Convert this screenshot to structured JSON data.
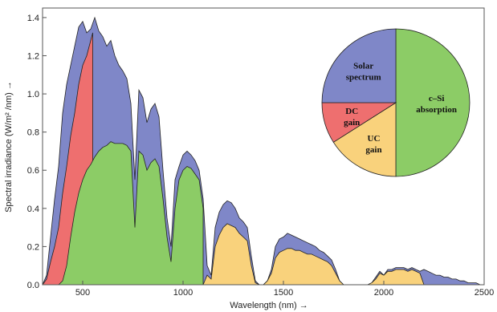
{
  "chart_data": [
    {
      "type": "area",
      "xlabel": "Wavelength (nm) →",
      "ylabel": "Spectral irradiance (W/m² /nm) →",
      "xlim": [
        300,
        2500
      ],
      "ylim": [
        0,
        1.45
      ],
      "xticks": [
        500,
        1000,
        1500,
        2000,
        2500
      ],
      "yticks": [
        0.0,
        0.2,
        0.4,
        0.6,
        0.8,
        1.0,
        1.2,
        1.4
      ],
      "x_tick_labels": [
        "500",
        "1000",
        "1500",
        "2000",
        "2500"
      ],
      "y_tick_labels": [
        "0.0",
        "0.2",
        "0.4",
        "0.6",
        "0.8",
        "1.0",
        "1.2",
        "1.4"
      ],
      "grid": false,
      "series": [
        {
          "color": "#7f87c8",
          "x": [
            300,
            320,
            340,
            360,
            380,
            400,
            420,
            440,
            460,
            480,
            500,
            520,
            540,
            560,
            580,
            600,
            620,
            640,
            660,
            680,
            700,
            720,
            740,
            760,
            780,
            800,
            820,
            840,
            860,
            880,
            900,
            920,
            940,
            960,
            980,
            1000,
            1020,
            1040,
            1060,
            1080,
            1100,
            1120,
            1140,
            1160,
            1180,
            1200,
            1220,
            1240,
            1260,
            1280,
            1300,
            1320,
            1340,
            1360,
            1380,
            1400,
            1420,
            1440,
            1460,
            1480,
            1500,
            1520,
            1540,
            1560,
            1580,
            1600,
            1620,
            1640,
            1660,
            1680,
            1700,
            1720,
            1740,
            1760,
            1780,
            1800,
            1820,
            1840,
            1860,
            1880,
            1900,
            1920,
            1940,
            1960,
            1980,
            2000,
            2020,
            2040,
            2060,
            2080,
            2100,
            2120,
            2140,
            2160,
            2180,
            2200,
            2220,
            2240,
            2260,
            2280,
            2300,
            2320,
            2340,
            2360,
            2380,
            2400,
            2420,
            2440,
            2460,
            2480,
            2500
          ],
          "y": [
            0.0,
            0.05,
            0.25,
            0.45,
            0.62,
            0.9,
            1.05,
            1.15,
            1.25,
            1.35,
            1.38,
            1.32,
            1.34,
            1.4,
            1.33,
            1.3,
            1.25,
            1.28,
            1.2,
            1.15,
            1.12,
            1.08,
            0.95,
            0.55,
            1.02,
            0.98,
            0.85,
            0.92,
            0.95,
            0.88,
            0.6,
            0.35,
            0.2,
            0.55,
            0.62,
            0.68,
            0.7,
            0.68,
            0.65,
            0.6,
            0.45,
            0.1,
            0.05,
            0.3,
            0.38,
            0.42,
            0.44,
            0.43,
            0.4,
            0.35,
            0.33,
            0.3,
            0.15,
            0.02,
            0.0,
            0.0,
            0.02,
            0.08,
            0.2,
            0.24,
            0.25,
            0.27,
            0.26,
            0.25,
            0.24,
            0.23,
            0.22,
            0.21,
            0.2,
            0.18,
            0.17,
            0.15,
            0.13,
            0.08,
            0.02,
            0.0,
            0.0,
            0.0,
            0.0,
            0.0,
            0.0,
            0.0,
            0.01,
            0.04,
            0.07,
            0.05,
            0.08,
            0.08,
            0.09,
            0.09,
            0.09,
            0.08,
            0.09,
            0.08,
            0.07,
            0.08,
            0.07,
            0.06,
            0.05,
            0.05,
            0.04,
            0.04,
            0.03,
            0.03,
            0.02,
            0.02,
            0.01,
            0.01,
            0.01,
            0.0,
            0.0
          ]
        },
        {
          "color": "#ee6f6f",
          "x": [
            300,
            320,
            340,
            360,
            380,
            400,
            420,
            440,
            460,
            480,
            500,
            520,
            540,
            550
          ],
          "y": [
            0.0,
            0.03,
            0.12,
            0.2,
            0.3,
            0.48,
            0.62,
            0.78,
            0.9,
            1.05,
            1.15,
            1.2,
            1.28,
            1.32
          ]
        },
        {
          "color": "#f9d27c",
          "x": [
            1100,
            1120,
            1140,
            1160,
            1180,
            1200,
            1220,
            1240,
            1260,
            1280,
            1300,
            1320,
            1340,
            1360,
            1380,
            1400,
            1420,
            1440,
            1460,
            1480,
            1500,
            1520,
            1540,
            1560,
            1580,
            1600,
            1620,
            1640,
            1660,
            1680,
            1700,
            1720,
            1740,
            1760,
            1780,
            1800,
            1820,
            1840,
            1860,
            1880,
            1900,
            1920,
            1940,
            1960,
            1980,
            2000,
            2020,
            2040,
            2060,
            2080,
            2100,
            2120,
            2140,
            2160,
            2180,
            2200
          ],
          "y": [
            0.0,
            0.05,
            0.03,
            0.2,
            0.26,
            0.3,
            0.32,
            0.31,
            0.3,
            0.27,
            0.25,
            0.23,
            0.1,
            0.01,
            0.0,
            0.0,
            0.02,
            0.06,
            0.14,
            0.17,
            0.18,
            0.19,
            0.19,
            0.18,
            0.18,
            0.17,
            0.16,
            0.16,
            0.15,
            0.14,
            0.13,
            0.12,
            0.1,
            0.06,
            0.02,
            0.0,
            0.0,
            0.0,
            0.0,
            0.0,
            0.0,
            0.0,
            0.01,
            0.03,
            0.06,
            0.05,
            0.07,
            0.07,
            0.08,
            0.08,
            0.08,
            0.07,
            0.08,
            0.07,
            0.06,
            0.0
          ]
        },
        {
          "color": "#8ccc66",
          "x": [
            300,
            320,
            340,
            360,
            380,
            400,
            420,
            440,
            460,
            480,
            500,
            520,
            540,
            560,
            580,
            600,
            620,
            640,
            660,
            680,
            700,
            720,
            740,
            760,
            780,
            800,
            820,
            840,
            860,
            880,
            900,
            920,
            940,
            960,
            980,
            1000,
            1020,
            1040,
            1060,
            1080,
            1100
          ],
          "y": [
            0.0,
            0.0,
            0.0,
            0.0,
            0.0,
            0.02,
            0.1,
            0.25,
            0.38,
            0.48,
            0.55,
            0.6,
            0.63,
            0.67,
            0.7,
            0.72,
            0.73,
            0.75,
            0.74,
            0.74,
            0.74,
            0.73,
            0.7,
            0.3,
            0.7,
            0.68,
            0.6,
            0.64,
            0.66,
            0.62,
            0.45,
            0.25,
            0.12,
            0.4,
            0.55,
            0.6,
            0.62,
            0.61,
            0.58,
            0.55,
            0.4
          ]
        }
      ]
    },
    {
      "type": "pie",
      "slices": [
        {
          "label": "c–Si absorption",
          "label_lines": [
            "c–Si",
            "absorption"
          ],
          "value": 50,
          "color": "#8ccc66"
        },
        {
          "label": "UC gain",
          "label_lines": [
            "UC",
            "gain"
          ],
          "value": 16,
          "color": "#f9d27c"
        },
        {
          "label": "DC gain",
          "label_lines": [
            "DC",
            "gain"
          ],
          "value": 9,
          "color": "#ee6f6f"
        },
        {
          "label": "Solar spectrum",
          "label_lines": [
            "Solar",
            "spectrum"
          ],
          "value": 25,
          "color": "#7f87c8"
        }
      ]
    }
  ]
}
